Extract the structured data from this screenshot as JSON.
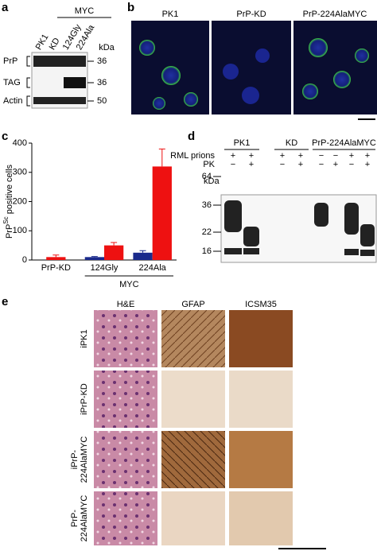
{
  "panel_a": {
    "letter": "a",
    "group": "MYC",
    "lanes": [
      "PK1",
      "KD",
      "124Gly",
      "224Ala"
    ],
    "unit": "kDa",
    "rows": [
      "PrP",
      "TAG",
      "Actin"
    ],
    "markers": [
      "36",
      "36",
      "50"
    ]
  },
  "panel_b": {
    "letter": "b",
    "columns": [
      "PK1",
      "PrP-KD",
      "PrP-224AlaMYC"
    ]
  },
  "panel_c": {
    "letter": "c",
    "chart_data": {
      "type": "bar",
      "y_label": {
        "base": "PrP",
        "sup": "Sc",
        "rest": " positive cells"
      },
      "categories": [
        "PrP-KD",
        "124Gly",
        "224Ala"
      ],
      "group_label": "MYC",
      "series": [
        {
          "color": "#1a2a8c",
          "values": [
            null,
            10,
            25
          ],
          "errors": [
            null,
            2,
            7
          ]
        },
        {
          "color": "#ee1111",
          "values": [
            10,
            50,
            320
          ],
          "errors": [
            7,
            10,
            60
          ]
        }
      ],
      "ylim": [
        0,
        400
      ],
      "yticks": [
        0,
        100,
        200,
        300,
        400
      ]
    }
  },
  "panel_d": {
    "letter": "d",
    "groups": [
      "PK1",
      "KD",
      "PrP-224AlaMYC"
    ],
    "row_labels": [
      "RML prions",
      "PK"
    ],
    "rml": [
      "+",
      "+",
      "+",
      "+",
      "−",
      "−",
      "+",
      "+"
    ],
    "pk": [
      "−",
      "+",
      "−",
      "+",
      "−",
      "+",
      "−",
      "+"
    ],
    "unit": "kDa",
    "markers": [
      "64",
      "36",
      "22",
      "16"
    ]
  },
  "panel_e": {
    "letter": "e",
    "columns": [
      "H&E",
      "GFAP",
      "ICSM35"
    ],
    "rows": [
      "iPK1",
      "iPrP-KD",
      "iPrP-",
      "224AlaMYC",
      "PrP-",
      "224AlaMYC"
    ]
  }
}
